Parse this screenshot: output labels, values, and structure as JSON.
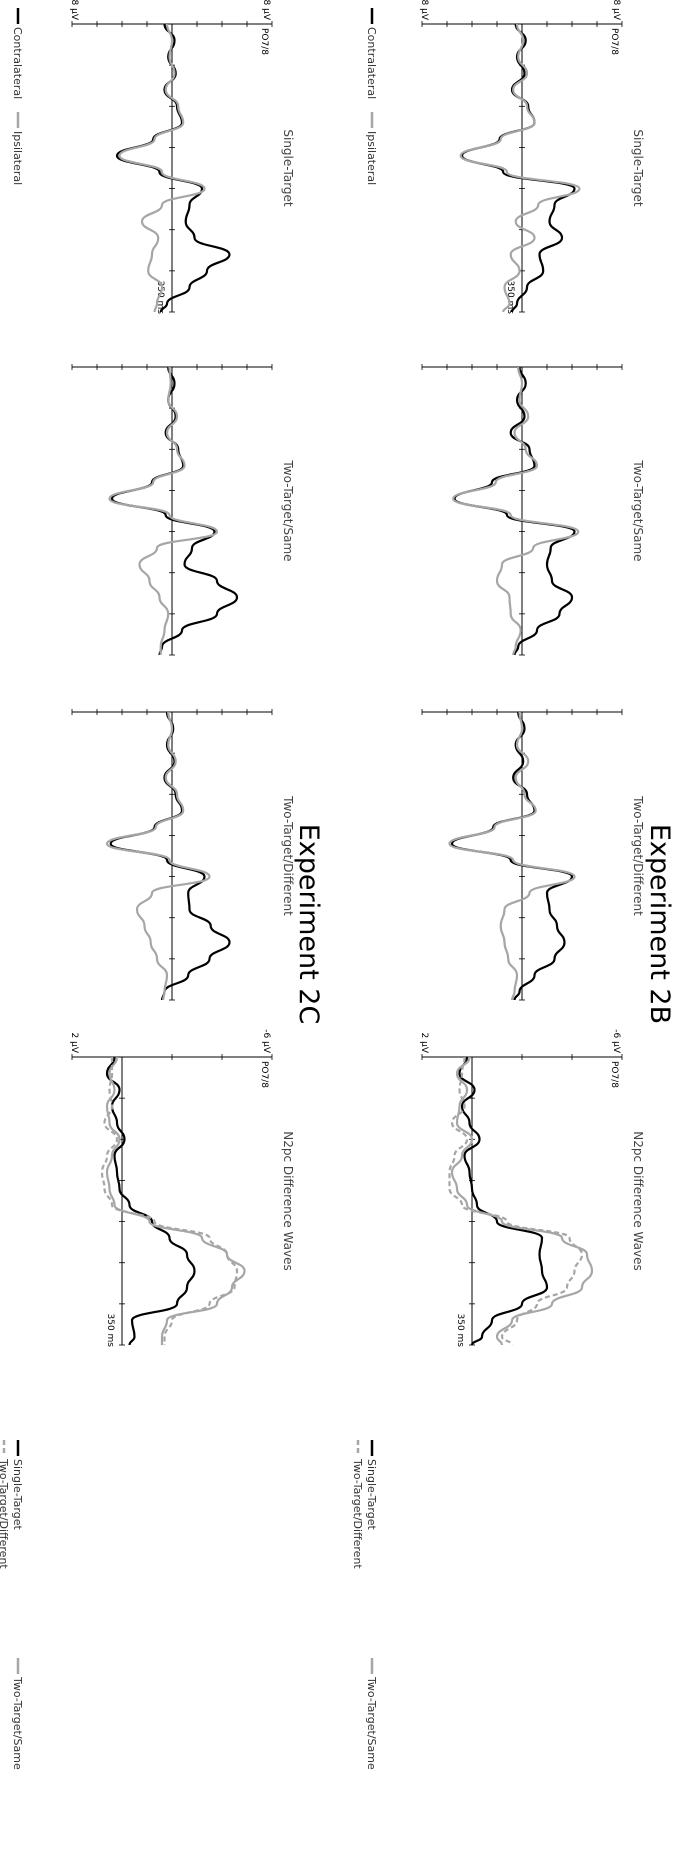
{
  "experiments": [
    {
      "label": "Experiment 2B"
    },
    {
      "label": "Experiment 2C"
    }
  ],
  "units": {
    "neg": "-8 µV",
    "pos": "8 µV",
    "diff_neg": "-6 µV",
    "diff_pos": "2 µV",
    "time": "350 ms",
    "electrode": "PO7/8"
  },
  "legends": {
    "erp": [
      {
        "label": "Contralateral",
        "color": "#000000"
      },
      {
        "label": "Ipsilateral",
        "color": "#a6a6a6"
      }
    ],
    "diff": [
      {
        "label": "Single-Target",
        "color": "#000000",
        "dash": false
      },
      {
        "label": "Two-Target/Same",
        "color": "#a6a6a6",
        "dash": false
      },
      {
        "label": "Two-Target/Different",
        "color": "#a6a6a6",
        "dash": true
      }
    ]
  },
  "chart_data": [
    {
      "type": "line",
      "experiment": "Experiment 2B",
      "title": "Single-Target",
      "x": [
        0,
        20,
        40,
        60,
        80,
        100,
        120,
        140,
        160,
        180,
        200,
        220,
        240,
        260,
        280,
        300,
        320,
        340,
        350
      ],
      "xlim": [
        0,
        350
      ],
      "ylim": [
        -8,
        8
      ],
      "ylabel": "PO7/8",
      "series": [
        {
          "name": "Contralateral",
          "values": [
            0.5,
            -0.3,
            0.4,
            -0.2,
            0.8,
            -0.5,
            -1.0,
            1.8,
            4.8,
            1.5,
            -4.2,
            -2.6,
            -2.2,
            -3.2,
            -1.4,
            -1.7,
            -0.4,
            0.4,
            0.8
          ]
        },
        {
          "name": "Ipsilateral",
          "values": [
            0.4,
            -0.1,
            0.3,
            -0.4,
            0.7,
            -0.4,
            -1.0,
            1.7,
            4.9,
            1.2,
            -4.6,
            -1.3,
            0.5,
            -1.0,
            0.9,
            0.2,
            1.4,
            1.0,
            1.5
          ]
        }
      ]
    },
    {
      "type": "line",
      "experiment": "Experiment 2B",
      "title": "Two-Target/Same",
      "x": [
        0,
        20,
        40,
        60,
        80,
        100,
        120,
        140,
        160,
        180,
        200,
        220,
        240,
        260,
        280,
        300,
        320,
        340,
        350
      ],
      "xlim": [
        0,
        350
      ],
      "ylim": [
        -8,
        8
      ],
      "ylabel": "",
      "series": [
        {
          "name": "Contralateral",
          "values": [
            0.2,
            -0.3,
            0.4,
            -0.2,
            0.9,
            -0.6,
            -1.0,
            2.4,
            5.4,
            1.2,
            -4.2,
            -2.3,
            -2.0,
            -2.4,
            -4.0,
            -3.0,
            -1.2,
            0.3,
            0.6
          ]
        },
        {
          "name": "Ipsilateral",
          "values": [
            0.3,
            0.0,
            0.2,
            -0.5,
            0.6,
            -0.3,
            -1.2,
            2.1,
            5.5,
            0.9,
            -4.5,
            -0.9,
            1.6,
            2.0,
            1.0,
            0.9,
            0.1,
            0.5,
            0.7
          ]
        }
      ]
    },
    {
      "type": "line",
      "experiment": "Experiment 2B",
      "title": "Two-Target/Different",
      "x": [
        0,
        20,
        40,
        60,
        80,
        100,
        120,
        140,
        160,
        180,
        200,
        220,
        240,
        260,
        280,
        300,
        320,
        340,
        350
      ],
      "xlim": [
        0,
        350
      ],
      "ylim": [
        -8,
        8
      ],
      "ylabel": "",
      "series": [
        {
          "name": "Contralateral",
          "values": [
            0.3,
            -0.2,
            0.5,
            -0.1,
            0.7,
            -0.4,
            -1.0,
            2.3,
            5.6,
            0.9,
            -4.0,
            -2.0,
            -2.2,
            -2.8,
            -3.4,
            -2.6,
            -1.0,
            0.2,
            0.6
          ]
        },
        {
          "name": "Ipsilateral",
          "values": [
            0.2,
            0.0,
            0.4,
            -0.5,
            0.5,
            -0.2,
            -1.1,
            2.2,
            5.8,
            0.7,
            -4.2,
            -0.6,
            1.4,
            1.7,
            1.4,
            1.1,
            0.4,
            0.6,
            0.8
          ]
        }
      ]
    },
    {
      "type": "line",
      "experiment": "Experiment 2B",
      "title": "N2pc Difference Waves",
      "x": [
        0,
        20,
        40,
        60,
        80,
        100,
        120,
        140,
        160,
        180,
        200,
        220,
        240,
        260,
        280,
        300,
        320,
        340,
        350
      ],
      "xlim": [
        0,
        350
      ],
      "ylim": [
        -6,
        2
      ],
      "ylabel": "PO7/8",
      "series": [
        {
          "name": "Single-Target",
          "values": [
            0.2,
            0.5,
            -0.1,
            0.4,
            0.1,
            -0.3,
            0.3,
            0.1,
            0.0,
            -0.2,
            -1.0,
            -2.8,
            -2.7,
            -2.8,
            -3.0,
            -2.0,
            -0.8,
            -0.4,
            0.0
          ]
        },
        {
          "name": "Two-Target/Same",
          "values": [
            0.1,
            0.6,
            0.2,
            0.5,
            0.6,
            0.0,
            0.4,
            0.8,
            0.6,
            0.2,
            -1.2,
            -3.6,
            -4.6,
            -4.8,
            -4.4,
            -3.2,
            -1.6,
            -1.0,
            -1.2
          ]
        },
        {
          "name": "Two-Target/Different",
          "values": [
            0.3,
            0.4,
            0.5,
            0.3,
            0.8,
            0.2,
            0.7,
            0.9,
            0.9,
            0.4,
            -1.4,
            -3.9,
            -4.4,
            -4.1,
            -3.8,
            -2.6,
            -1.8,
            -1.2,
            -1.6
          ]
        }
      ]
    },
    {
      "type": "line",
      "experiment": "Experiment 2C",
      "title": "Single-Target",
      "x": [
        0,
        20,
        40,
        60,
        80,
        100,
        120,
        140,
        160,
        180,
        200,
        220,
        240,
        260,
        280,
        300,
        320,
        340,
        350
      ],
      "xlim": [
        0,
        350
      ],
      "ylim": [
        -8,
        8
      ],
      "ylabel": "PO7/8",
      "series": [
        {
          "name": "Contralateral",
          "values": [
            0.6,
            -0.2,
            0.3,
            -0.3,
            0.6,
            -0.4,
            -0.8,
            1.5,
            4.4,
            1.0,
            -2.4,
            -1.4,
            -1.1,
            -1.8,
            -4.6,
            -2.8,
            -1.4,
            0.4,
            0.9
          ]
        },
        {
          "name": "Ipsilateral",
          "values": [
            0.4,
            0.0,
            0.2,
            -0.2,
            0.5,
            -0.5,
            -0.9,
            1.4,
            4.2,
            0.8,
            -2.6,
            0.8,
            2.4,
            1.1,
            1.6,
            1.9,
            0.8,
            1.2,
            1.4
          ]
        }
      ]
    },
    {
      "type": "line",
      "experiment": "Experiment 2C",
      "title": "Two-Target/Same",
      "x": [
        0,
        20,
        40,
        60,
        80,
        100,
        120,
        140,
        160,
        180,
        200,
        220,
        240,
        260,
        280,
        300,
        320,
        340,
        350
      ],
      "xlim": [
        0,
        350
      ],
      "ylim": [
        -8,
        8
      ],
      "ylabel": "",
      "series": [
        {
          "name": "Contralateral",
          "values": [
            0.3,
            -0.2,
            0.3,
            -0.3,
            0.5,
            -0.5,
            -0.9,
            1.6,
            4.8,
            0.5,
            -3.4,
            -1.6,
            -1.0,
            -3.6,
            -5.2,
            -3.6,
            -0.8,
            0.8,
            1.0
          ]
        },
        {
          "name": "Ipsilateral",
          "values": [
            0.2,
            0.1,
            0.3,
            -0.4,
            0.4,
            -0.4,
            -1.0,
            1.5,
            5.0,
            0.2,
            -3.6,
            1.2,
            2.6,
            1.8,
            1.0,
            0.3,
            0.6,
            0.9,
            0.9
          ]
        }
      ]
    },
    {
      "type": "line",
      "experiment": "Experiment 2C",
      "title": "Two-Target/Different",
      "x": [
        0,
        20,
        40,
        60,
        80,
        100,
        120,
        140,
        160,
        180,
        200,
        220,
        240,
        260,
        280,
        300,
        320,
        340,
        350
      ],
      "xlim": [
        0,
        350
      ],
      "ylim": [
        -8,
        8
      ],
      "ylabel": "",
      "series": [
        {
          "name": "Contralateral",
          "values": [
            0.4,
            -0.1,
            0.4,
            -0.2,
            0.6,
            -0.3,
            -0.8,
            1.4,
            4.9,
            0.4,
            -2.6,
            -1.3,
            -1.4,
            -3.1,
            -4.6,
            -3.0,
            -1.3,
            0.6,
            0.8
          ]
        },
        {
          "name": "Ipsilateral",
          "values": [
            0.3,
            0.0,
            0.3,
            -0.3,
            0.5,
            -0.4,
            -0.9,
            1.3,
            5.2,
            0.2,
            -3.0,
            1.6,
            2.8,
            2.2,
            1.7,
            1.2,
            0.4,
            0.6,
            0.7
          ]
        }
      ]
    },
    {
      "type": "line",
      "experiment": "Experiment 2C",
      "title": "N2pc Difference Waves",
      "x": [
        0,
        20,
        40,
        60,
        80,
        100,
        120,
        140,
        160,
        180,
        200,
        220,
        240,
        260,
        280,
        300,
        320,
        340,
        350
      ],
      "xlim": [
        0,
        350
      ],
      "ylim": [
        -6,
        2
      ],
      "ylabel": "PO7/8",
      "series": [
        {
          "name": "Single-Target",
          "values": [
            0.3,
            0.6,
            0.1,
            0.4,
            0.2,
            -0.1,
            0.3,
            0.2,
            0.1,
            -0.3,
            -1.2,
            -1.9,
            -2.6,
            -2.9,
            -2.6,
            -2.2,
            -0.4,
            -0.5,
            -0.3
          ]
        },
        {
          "name": "Two-Target/Same",
          "values": [
            0.2,
            0.5,
            0.3,
            0.6,
            0.5,
            0.1,
            0.4,
            0.6,
            0.5,
            0.3,
            -1.1,
            -3.2,
            -4.2,
            -4.9,
            -4.4,
            -3.8,
            -1.8,
            -1.6,
            -1.6
          ]
        },
        {
          "name": "Two-Target/Different",
          "values": [
            0.4,
            0.4,
            0.5,
            0.4,
            0.7,
            0.2,
            0.6,
            0.8,
            0.7,
            0.4,
            -1.3,
            -3.5,
            -4.2,
            -4.6,
            -4.5,
            -3.5,
            -2.0,
            -1.7,
            -1.7
          ]
        }
      ]
    }
  ]
}
